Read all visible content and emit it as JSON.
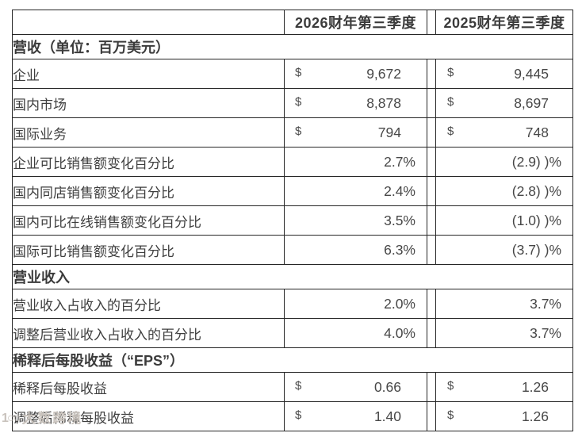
{
  "table": {
    "currency_symbol": "$",
    "columns": [
      "",
      "2026财年第三季度",
      "2025财年第三季度"
    ],
    "rows": [
      {
        "type": "section",
        "label": "营收（单位：百万美元）"
      },
      {
        "type": "money",
        "label": "企业",
        "v1": "9,672",
        "v2": "9,445"
      },
      {
        "type": "money",
        "label": "国内市场",
        "v1": "8,878",
        "v2": "8,697"
      },
      {
        "type": "money",
        "label": "国际业务",
        "v1": "794",
        "v2": "748"
      },
      {
        "type": "percent",
        "label": "企业可比销售额变化百分比",
        "v1": "2.7%",
        "v2": "(2.9)  )%"
      },
      {
        "type": "percent",
        "label": "国内同店销售额变化百分比",
        "v1": "2.4%",
        "v2": "(2.8)  )%"
      },
      {
        "type": "percent",
        "label": "国内可比在线销售额变化百分比",
        "v1": "3.5%",
        "v2": "(1.0)  )%"
      },
      {
        "type": "percent",
        "label": "国际可比销售额变化百分比",
        "v1": "6.3%",
        "v2": "(3.7)  )%"
      },
      {
        "type": "section",
        "label": "营业收入"
      },
      {
        "type": "percent",
        "label": "营业收入占收入的百分比",
        "v1": "2.0%",
        "v2": "3.7%"
      },
      {
        "type": "percent",
        "label": "调整后营业收入占收入的百分比",
        "v1": "4.0%",
        "v2": "3.7%"
      },
      {
        "type": "section",
        "label": "稀释后每股收益（“EPS”）"
      },
      {
        "type": "money",
        "label": "稀释后每股收益",
        "v1": "0.66",
        "v2": "1.26"
      },
      {
        "type": "money",
        "label": "调整后稀释每股收益",
        "v1": "1.40",
        "v2": "1.26"
      }
    ]
  },
  "watermark": {
    "logo": "1○○",
    "text": "大数跨境"
  },
  "colors": {
    "border": "#262626",
    "text": "#3e3e3e",
    "watermark": "#c9c3bd",
    "background": "#ffffff"
  }
}
